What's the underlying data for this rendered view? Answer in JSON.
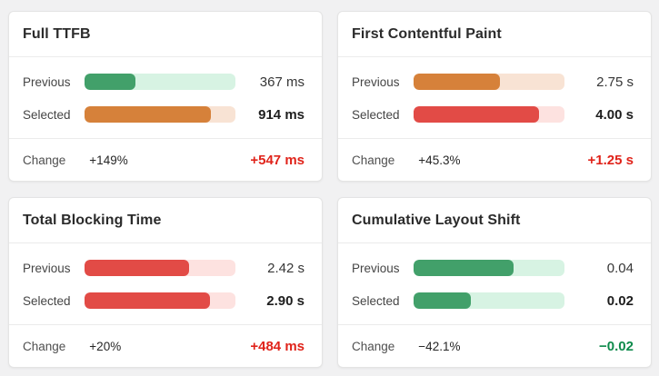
{
  "colors": {
    "page_bg": "#f1f1f2",
    "card_bg": "#ffffff",
    "card_border": "#e4e4e4",
    "divider": "#ebebeb",
    "green_fill": "#42a06a",
    "green_track": "#d7f3e3",
    "orange_fill": "#d6813a",
    "orange_track": "#f8e3d4",
    "red_fill": "#e24b46",
    "red_track": "#fde2e0",
    "change_worse_text": "#e0231a",
    "change_better_text": "#0f8b4c"
  },
  "chart_data": [
    {
      "type": "bar",
      "title": "Full TTFB",
      "categories": [
        "Previous",
        "Selected"
      ],
      "values": [
        367,
        914
      ],
      "unit": "ms",
      "change_percent": "+149%",
      "change_delta": "+547 ms"
    },
    {
      "type": "bar",
      "title": "First Contentful Paint",
      "categories": [
        "Previous",
        "Selected"
      ],
      "values": [
        2.75,
        4.0
      ],
      "unit": "s",
      "change_percent": "+45.3%",
      "change_delta": "+1.25 s"
    },
    {
      "type": "bar",
      "title": "Total Blocking Time",
      "categories": [
        "Previous",
        "Selected"
      ],
      "values": [
        2.42,
        2.9
      ],
      "unit": "s",
      "change_percent": "+20%",
      "change_delta": "+484 ms"
    },
    {
      "type": "bar",
      "title": "Cumulative Layout Shift",
      "categories": [
        "Previous",
        "Selected"
      ],
      "values": [
        0.04,
        0.02
      ],
      "unit": "",
      "change_percent": "−42.1%",
      "change_delta": "−0.02"
    }
  ],
  "cards": [
    {
      "title": "Full TTFB",
      "previous": {
        "label": "Previous",
        "value": "367 ms",
        "fill_pct": 34,
        "color": "green"
      },
      "selected": {
        "label": "Selected",
        "value": "914 ms",
        "fill_pct": 84,
        "color": "orange"
      },
      "change": {
        "label": "Change",
        "percent": "+149%",
        "delta": "+547 ms",
        "color": "red"
      }
    },
    {
      "title": "First Contentful Paint",
      "previous": {
        "label": "Previous",
        "value": "2.75 s",
        "fill_pct": 57,
        "color": "orange"
      },
      "selected": {
        "label": "Selected",
        "value": "4.00 s",
        "fill_pct": 83,
        "color": "red"
      },
      "change": {
        "label": "Change",
        "percent": "+45.3%",
        "delta": "+1.25 s",
        "color": "red"
      }
    },
    {
      "title": "Total Blocking Time",
      "previous": {
        "label": "Previous",
        "value": "2.42 s",
        "fill_pct": 69,
        "color": "red"
      },
      "selected": {
        "label": "Selected",
        "value": "2.90 s",
        "fill_pct": 83,
        "color": "red"
      },
      "change": {
        "label": "Change",
        "percent": "+20%",
        "delta": "+484 ms",
        "color": "red"
      }
    },
    {
      "title": "Cumulative Layout Shift",
      "previous": {
        "label": "Previous",
        "value": "0.04",
        "fill_pct": 66,
        "color": "green"
      },
      "selected": {
        "label": "Selected",
        "value": "0.02",
        "fill_pct": 38,
        "color": "green"
      },
      "change": {
        "label": "Change",
        "percent": "−42.1%",
        "delta": "−0.02",
        "color": "green"
      }
    }
  ]
}
